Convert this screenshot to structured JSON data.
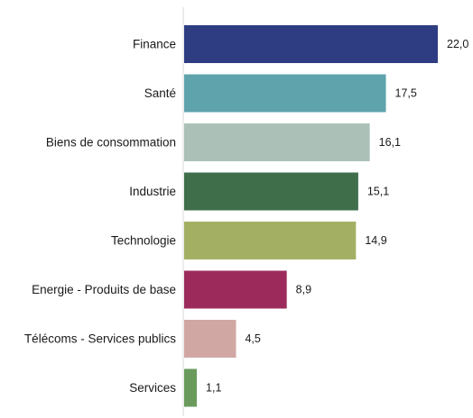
{
  "chart_data": {
    "type": "bar",
    "orientation": "horizontal",
    "categories": [
      "Finance",
      "Santé",
      "Biens de consommation",
      "Industrie",
      "Technologie",
      "Energie - Produits de base",
      "Télécoms - Services publics",
      "Services"
    ],
    "values": [
      22.0,
      17.5,
      16.1,
      15.1,
      14.9,
      8.9,
      4.5,
      1.1
    ],
    "value_labels": [
      "22,0",
      "17,5",
      "16,1",
      "15,1",
      "14,9",
      "8,9",
      "4,5",
      "1,1"
    ],
    "colors": [
      "#2e3c82",
      "#5fa3ad",
      "#abc1b8",
      "#3f6e4b",
      "#a3b064",
      "#9c2b5c",
      "#d1a7a4",
      "#6a9a5c"
    ],
    "xlim": [
      0,
      22.0
    ],
    "axis_color": "#d9d9d9",
    "grid": false,
    "legend": "none",
    "title": "",
    "xlabel": "",
    "ylabel": ""
  }
}
